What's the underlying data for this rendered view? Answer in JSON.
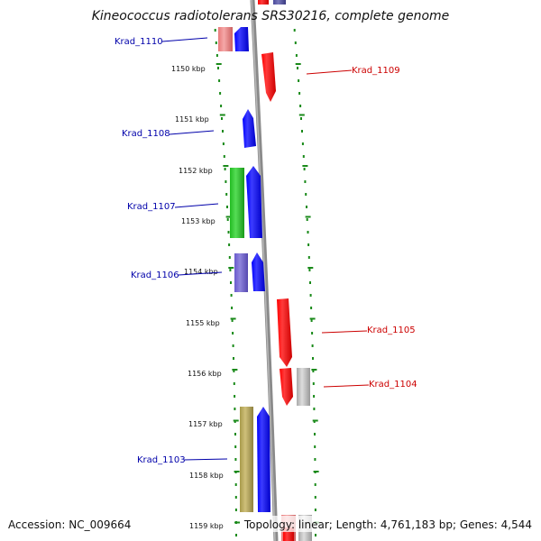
{
  "title": "Kineococcus radiotolerans SRS30216, complete genome",
  "accession": "Accession: NC_009664",
  "topology": "Topology: linear; Length: 4,761,183 bp; Genes: 4,544",
  "ticks": [
    "1150 kbp",
    "1151 kbp",
    "1152 kbp",
    "1153 kbp",
    "1154 kbp",
    "1155 kbp",
    "1156 kbp",
    "1157 kbp",
    "1158 kbp",
    "1159 kbp"
  ],
  "genes": [
    {
      "name": "Krad_1110",
      "strand": "minus",
      "color": "#1a1aff"
    },
    {
      "name": "Krad_1109",
      "strand": "plus",
      "color": "#ff0000"
    },
    {
      "name": "Krad_1108",
      "strand": "minus",
      "color": "#1a1aff"
    },
    {
      "name": "Krad_1107",
      "strand": "minus",
      "color": "#1a1aff"
    },
    {
      "name": "Krad_1106",
      "strand": "minus",
      "color": "#1a1aff"
    },
    {
      "name": "Krad_1105",
      "strand": "plus",
      "color": "#ff0000"
    },
    {
      "name": "Krad_1104",
      "strand": "plus",
      "color": "#ff0000"
    },
    {
      "name": "Krad_1103",
      "strand": "minus",
      "color": "#1a1aff"
    }
  ],
  "colors": {
    "plus_label": "#cc0000",
    "minus_label": "#0000aa",
    "dots": "#1a8a1a",
    "backbone": "#8a8a8a"
  }
}
